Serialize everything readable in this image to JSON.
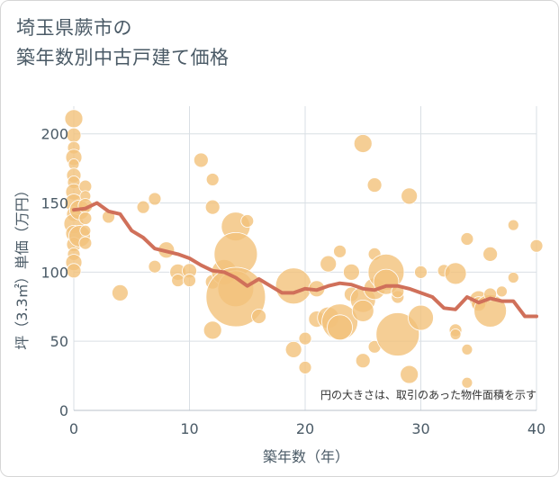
{
  "chart_data": {
    "type": "scatter",
    "title_lines": [
      "埼玉県蕨市の",
      "築年数別中古戸建て価格"
    ],
    "xlabel": "築年数（年）",
    "ylabel": "坪（3.3㎡）単価（万円）",
    "xlim": [
      0,
      40
    ],
    "ylim": [
      0,
      220
    ],
    "xticks": [
      0,
      10,
      20,
      30,
      40
    ],
    "yticks": [
      0,
      50,
      100,
      150,
      200
    ],
    "grid": true,
    "note": "円の大きさは、取引のあった物件面積を示す",
    "colors": {
      "bubble": "#f2c27a",
      "bubble_stroke": "#ffffff",
      "line": "#d0705a",
      "grid": "#d9dfe4"
    },
    "bubbles": [
      {
        "x": 0,
        "y": 211,
        "s": 10
      },
      {
        "x": 0,
        "y": 199,
        "s": 8
      },
      {
        "x": 0,
        "y": 190,
        "s": 7
      },
      {
        "x": 0,
        "y": 183,
        "s": 9
      },
      {
        "x": 0,
        "y": 178,
        "s": 6
      },
      {
        "x": 0,
        "y": 170,
        "s": 8
      },
      {
        "x": 0,
        "y": 165,
        "s": 7
      },
      {
        "x": 0,
        "y": 158,
        "s": 9
      },
      {
        "x": 0,
        "y": 150,
        "s": 10
      },
      {
        "x": 0,
        "y": 142,
        "s": 8
      },
      {
        "x": 0,
        "y": 135,
        "s": 11
      },
      {
        "x": 0,
        "y": 128,
        "s": 9
      },
      {
        "x": 0,
        "y": 120,
        "s": 8
      },
      {
        "x": 0,
        "y": 113,
        "s": 7
      },
      {
        "x": 0,
        "y": 107,
        "s": 9
      },
      {
        "x": 0,
        "y": 101,
        "s": 8
      },
      {
        "x": 0.5,
        "y": 126,
        "s": 12
      },
      {
        "x": 0.5,
        "y": 145,
        "s": 11
      },
      {
        "x": 1,
        "y": 162,
        "s": 7
      },
      {
        "x": 1,
        "y": 155,
        "s": 6
      },
      {
        "x": 1,
        "y": 148,
        "s": 8
      },
      {
        "x": 1,
        "y": 139,
        "s": 7
      },
      {
        "x": 1,
        "y": 130,
        "s": 6
      },
      {
        "x": 1,
        "y": 121,
        "s": 7
      },
      {
        "x": 3,
        "y": 140,
        "s": 7
      },
      {
        "x": 4,
        "y": 85,
        "s": 9
      },
      {
        "x": 6,
        "y": 147,
        "s": 7
      },
      {
        "x": 7,
        "y": 153,
        "s": 7
      },
      {
        "x": 7,
        "y": 104,
        "s": 7
      },
      {
        "x": 8,
        "y": 116,
        "s": 9
      },
      {
        "x": 9,
        "y": 100,
        "s": 9
      },
      {
        "x": 9,
        "y": 94,
        "s": 7
      },
      {
        "x": 10,
        "y": 101,
        "s": 8
      },
      {
        "x": 10,
        "y": 94,
        "s": 7
      },
      {
        "x": 11,
        "y": 181,
        "s": 8
      },
      {
        "x": 12,
        "y": 167,
        "s": 7
      },
      {
        "x": 12,
        "y": 147,
        "s": 8
      },
      {
        "x": 12,
        "y": 93,
        "s": 8
      },
      {
        "x": 12,
        "y": 58,
        "s": 10
      },
      {
        "x": 13,
        "y": 100,
        "s": 14
      },
      {
        "x": 14,
        "y": 133,
        "s": 16
      },
      {
        "x": 14,
        "y": 113,
        "s": 24
      },
      {
        "x": 14,
        "y": 88,
        "s": 20
      },
      {
        "x": 14,
        "y": 82,
        "s": 33
      },
      {
        "x": 15,
        "y": 137,
        "s": 7
      },
      {
        "x": 16,
        "y": 68,
        "s": 8
      },
      {
        "x": 19,
        "y": 90,
        "s": 20
      },
      {
        "x": 19,
        "y": 44,
        "s": 9
      },
      {
        "x": 20,
        "y": 52,
        "s": 7
      },
      {
        "x": 20,
        "y": 31,
        "s": 7
      },
      {
        "x": 21,
        "y": 66,
        "s": 9
      },
      {
        "x": 21,
        "y": 88,
        "s": 9
      },
      {
        "x": 22,
        "y": 67,
        "s": 12
      },
      {
        "x": 22,
        "y": 106,
        "s": 9
      },
      {
        "x": 23,
        "y": 115,
        "s": 7
      },
      {
        "x": 23,
        "y": 64,
        "s": 20
      },
      {
        "x": 23,
        "y": 60,
        "s": 14
      },
      {
        "x": 24,
        "y": 100,
        "s": 9
      },
      {
        "x": 24,
        "y": 84,
        "s": 8
      },
      {
        "x": 25,
        "y": 193,
        "s": 10
      },
      {
        "x": 25,
        "y": 80,
        "s": 14
      },
      {
        "x": 25,
        "y": 72,
        "s": 12
      },
      {
        "x": 25,
        "y": 36,
        "s": 8
      },
      {
        "x": 26,
        "y": 163,
        "s": 8
      },
      {
        "x": 26,
        "y": 113,
        "s": 7
      },
      {
        "x": 26,
        "y": 88,
        "s": 12
      },
      {
        "x": 26,
        "y": 46,
        "s": 7
      },
      {
        "x": 27,
        "y": 100,
        "s": 20
      },
      {
        "x": 27,
        "y": 93,
        "s": 14
      },
      {
        "x": 28,
        "y": 55,
        "s": 24
      },
      {
        "x": 28,
        "y": 82,
        "s": 7
      },
      {
        "x": 28,
        "y": 86,
        "s": 7
      },
      {
        "x": 29,
        "y": 155,
        "s": 9
      },
      {
        "x": 29,
        "y": 26,
        "s": 10
      },
      {
        "x": 30,
        "y": 100,
        "s": 7
      },
      {
        "x": 30,
        "y": 67,
        "s": 14
      },
      {
        "x": 32,
        "y": 101,
        "s": 7
      },
      {
        "x": 33,
        "y": 99,
        "s": 12
      },
      {
        "x": 33,
        "y": 58,
        "s": 7
      },
      {
        "x": 33,
        "y": 55,
        "s": 6
      },
      {
        "x": 34,
        "y": 124,
        "s": 7
      },
      {
        "x": 34,
        "y": 44,
        "s": 6
      },
      {
        "x": 34,
        "y": 20,
        "s": 6
      },
      {
        "x": 35,
        "y": 80,
        "s": 10
      },
      {
        "x": 35,
        "y": 77,
        "s": 8
      },
      {
        "x": 36,
        "y": 113,
        "s": 8
      },
      {
        "x": 36,
        "y": 72,
        "s": 18
      },
      {
        "x": 36,
        "y": 84,
        "s": 7
      },
      {
        "x": 37,
        "y": 86,
        "s": 6
      },
      {
        "x": 38,
        "y": 134,
        "s": 6
      },
      {
        "x": 38,
        "y": 96,
        "s": 6
      },
      {
        "x": 40,
        "y": 119,
        "s": 7
      }
    ],
    "trend": {
      "x": [
        0,
        1,
        2,
        3,
        4,
        5,
        6,
        7,
        8,
        9,
        10,
        11,
        12,
        13,
        14,
        15,
        16,
        17,
        18,
        19,
        20,
        21,
        22,
        23,
        24,
        25,
        26,
        27,
        28,
        29,
        30,
        31,
        32,
        33,
        34,
        35,
        36,
        37,
        38,
        39,
        40
      ],
      "y": [
        145,
        146,
        150,
        144,
        142,
        130,
        125,
        117,
        115,
        113,
        110,
        105,
        101,
        100,
        96,
        90,
        95,
        90,
        85,
        85,
        88,
        87,
        90,
        92,
        91,
        88,
        87,
        90,
        90,
        88,
        85,
        82,
        74,
        73,
        82,
        78,
        81,
        79,
        79,
        68,
        68
      ]
    }
  }
}
